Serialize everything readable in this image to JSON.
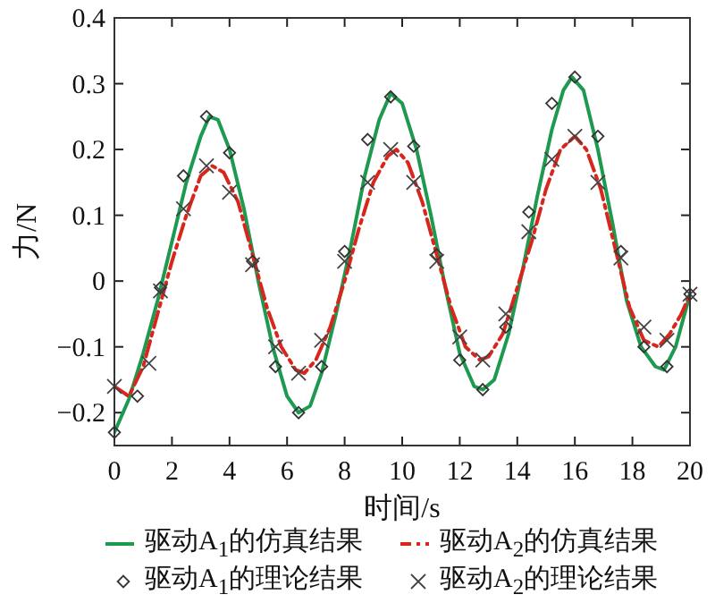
{
  "chart_data": {
    "type": "line",
    "xlabel": "时间/s",
    "ylabel": "力/N",
    "xlim": [
      0,
      20
    ],
    "ylim": [
      -0.25,
      0.4
    ],
    "xticks": [
      0,
      2,
      4,
      6,
      8,
      10,
      12,
      14,
      16,
      18,
      20
    ],
    "yticks": [
      {
        "value": -0.2,
        "label": "−0.2"
      },
      {
        "value": -0.1,
        "label": "−0.1"
      },
      0,
      0.1,
      0.2,
      0.3,
      0.4
    ],
    "grid": false,
    "legend": "bottom",
    "series": [
      {
        "name": "驱动A$_{1}$的仿真结果",
        "type": "line",
        "color": "#1e9a50",
        "line_style": "solid",
        "marker": "none",
        "x": [
          0,
          0.5,
          1,
          1.5,
          2,
          2.5,
          3,
          3.3,
          3.6,
          4,
          4.5,
          5,
          5.5,
          6,
          6.4,
          6.8,
          7.2,
          7.7,
          8.2,
          8.7,
          9.2,
          9.6,
          10,
          10.5,
          11,
          11.5,
          12,
          12.5,
          12.8,
          13.2,
          13.7,
          14.2,
          14.7,
          15.2,
          15.6,
          15.9,
          16.3,
          16.8,
          17.3,
          17.8,
          18.3,
          18.8,
          19.1,
          19.5,
          20
        ],
        "values": [
          -0.23,
          -0.18,
          -0.11,
          -0.03,
          0.06,
          0.15,
          0.22,
          0.25,
          0.245,
          0.2,
          0.11,
          0.0,
          -0.1,
          -0.175,
          -0.2,
          -0.19,
          -0.14,
          -0.05,
          0.05,
          0.16,
          0.245,
          0.285,
          0.27,
          0.2,
          0.1,
          -0.01,
          -0.11,
          -0.16,
          -0.165,
          -0.15,
          -0.08,
          0.02,
          0.13,
          0.23,
          0.29,
          0.31,
          0.29,
          0.2,
          0.09,
          -0.03,
          -0.1,
          -0.13,
          -0.135,
          -0.1,
          -0.02
        ]
      },
      {
        "name": "驱动A$_{2}$的仿真结果",
        "type": "line",
        "color": "#d9261c",
        "line_style": "dashdot",
        "marker": "none",
        "x": [
          0,
          0.5,
          1,
          1.5,
          2,
          2.5,
          3,
          3.4,
          3.8,
          4.3,
          4.8,
          5.3,
          5.8,
          6.3,
          6.6,
          7,
          7.5,
          8,
          8.5,
          9,
          9.5,
          9.8,
          10.2,
          10.7,
          11.2,
          11.7,
          12.2,
          12.7,
          13,
          13.5,
          14,
          14.5,
          15,
          15.5,
          16,
          16.4,
          16.9,
          17.4,
          17.9,
          18.4,
          18.9,
          19.3,
          19.7,
          20
        ],
        "values": [
          -0.16,
          -0.175,
          -0.13,
          -0.05,
          0.03,
          0.1,
          0.16,
          0.175,
          0.165,
          0.12,
          0.04,
          -0.04,
          -0.1,
          -0.135,
          -0.14,
          -0.12,
          -0.07,
          0.0,
          0.08,
          0.15,
          0.19,
          0.2,
          0.18,
          0.12,
          0.04,
          -0.04,
          -0.1,
          -0.12,
          -0.115,
          -0.08,
          -0.01,
          0.06,
          0.14,
          0.2,
          0.22,
          0.2,
          0.14,
          0.05,
          -0.04,
          -0.09,
          -0.1,
          -0.08,
          -0.05,
          -0.02
        ]
      },
      {
        "name": "驱动A$_{1}$的理论结果",
        "type": "scatter",
        "color": "#333333",
        "marker": "diamond",
        "x": [
          0,
          0.8,
          1.6,
          2.4,
          3.2,
          4.0,
          4.8,
          5.6,
          6.4,
          7.2,
          8.0,
          8.8,
          9.6,
          10.4,
          11.2,
          12.0,
          12.8,
          13.6,
          14.4,
          15.2,
          16.0,
          16.8,
          17.6,
          18.4,
          19.2,
          20
        ],
        "values": [
          -0.23,
          -0.175,
          -0.01,
          0.16,
          0.25,
          0.195,
          0.03,
          -0.13,
          -0.2,
          -0.13,
          0.045,
          0.215,
          0.28,
          0.205,
          0.04,
          -0.12,
          -0.165,
          -0.07,
          0.105,
          0.27,
          0.31,
          0.22,
          0.045,
          -0.1,
          -0.13,
          -0.02
        ]
      },
      {
        "name": "驱动A$_{2}$的理论结果",
        "type": "scatter",
        "color": "#444444",
        "marker": "cross",
        "x": [
          0,
          1.2,
          1.6,
          2.4,
          3.2,
          4.0,
          4.8,
          5.6,
          6.4,
          7.2,
          8.0,
          8.8,
          9.6,
          10.4,
          11.2,
          12.0,
          12.8,
          13.6,
          14.4,
          15.2,
          16.0,
          16.8,
          17.6,
          18.4,
          19.2,
          20
        ],
        "values": [
          -0.16,
          -0.125,
          -0.015,
          0.11,
          0.175,
          0.135,
          0.025,
          -0.1,
          -0.14,
          -0.09,
          0.03,
          0.15,
          0.2,
          0.15,
          0.03,
          -0.085,
          -0.12,
          -0.05,
          0.075,
          0.185,
          0.22,
          0.15,
          0.035,
          -0.07,
          -0.09,
          -0.02
        ]
      }
    ]
  }
}
